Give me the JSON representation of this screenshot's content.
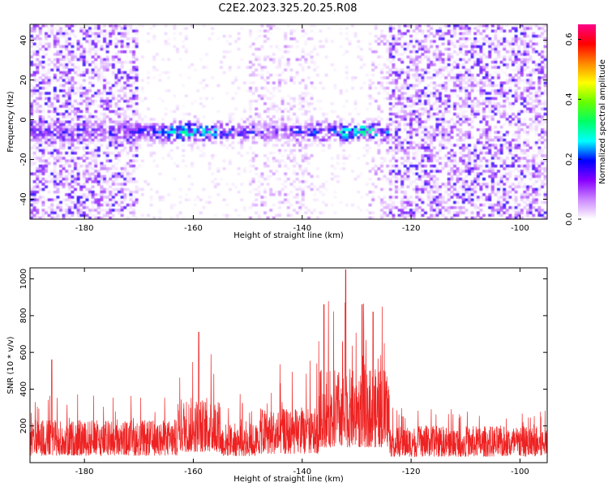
{
  "title": "C2E2.2023.325.20.25.R08",
  "colors": {
    "snr_line": "#ee2222",
    "frame": "#000000",
    "background": "#ffffff"
  },
  "chart_data": [
    {
      "type": "heatmap",
      "xlabel": "Height of straight line (km)",
      "ylabel": "Frequency (Hz)",
      "xlim": [
        -190,
        -95
      ],
      "ylim": [
        -50,
        48
      ],
      "x_ticks": [
        -180,
        -160,
        -140,
        -120,
        -100
      ],
      "y_ticks": [
        -40,
        -20,
        0,
        20,
        40
      ],
      "colorbar": {
        "label": "Normalized spectral amplitude",
        "range": [
          0.0,
          0.65
        ],
        "ticks": [
          0.0,
          0.2,
          0.4,
          0.6
        ],
        "colormap": [
          "#ffffff",
          "#cc88ff",
          "#8800ff",
          "#0000ff",
          "#00ffff",
          "#00ff66",
          "#66ff00",
          "#ffff00",
          "#ff8800",
          "#ff0000",
          "#ff0088"
        ]
      },
      "features": {
        "band_center_freq_hz": -6,
        "band_x_range_km": [
          -190,
          -124
        ],
        "peak_amplitude_at_km": [
          -160,
          -130
        ],
        "background_noise_regions_km": [
          [
            -190,
            -170
          ],
          [
            -124,
            -95
          ]
        ],
        "low_signal_regions_km": [
          [
            -170,
            -150
          ],
          [
            -138,
            -128
          ]
        ]
      }
    },
    {
      "type": "line",
      "xlabel": "Height of straight line (km)",
      "ylabel": "SNR (10 * v/v)",
      "xlim": [
        -190,
        -95
      ],
      "ylim": [
        0,
        1060
      ],
      "x_ticks": [
        -180,
        -160,
        -140,
        -120,
        -100
      ],
      "y_ticks": [
        200,
        400,
        600,
        800,
        1000
      ],
      "segments": [
        {
          "x_range": [
            -190,
            -163
          ],
          "median": 150,
          "typical_max": 380
        },
        {
          "x_range": [
            -163,
            -155
          ],
          "median": 230,
          "typical_max": 600
        },
        {
          "x_range": [
            -155,
            -148
          ],
          "median": 140,
          "typical_max": 380
        },
        {
          "x_range": [
            -148,
            -137
          ],
          "median": 190,
          "typical_max": 560
        },
        {
          "x_range": [
            -137,
            -124
          ],
          "median": 330,
          "typical_max": 880
        },
        {
          "x_range": [
            -124,
            -95
          ],
          "median": 130,
          "typical_max": 300
        }
      ],
      "peaks": [
        {
          "x": -132,
          "y": 1050
        },
        {
          "x": -136,
          "y": 860
        },
        {
          "x": -129,
          "y": 860
        },
        {
          "x": -127,
          "y": 820
        },
        {
          "x": -159,
          "y": 710
        },
        {
          "x": -186,
          "y": 560
        }
      ]
    }
  ]
}
